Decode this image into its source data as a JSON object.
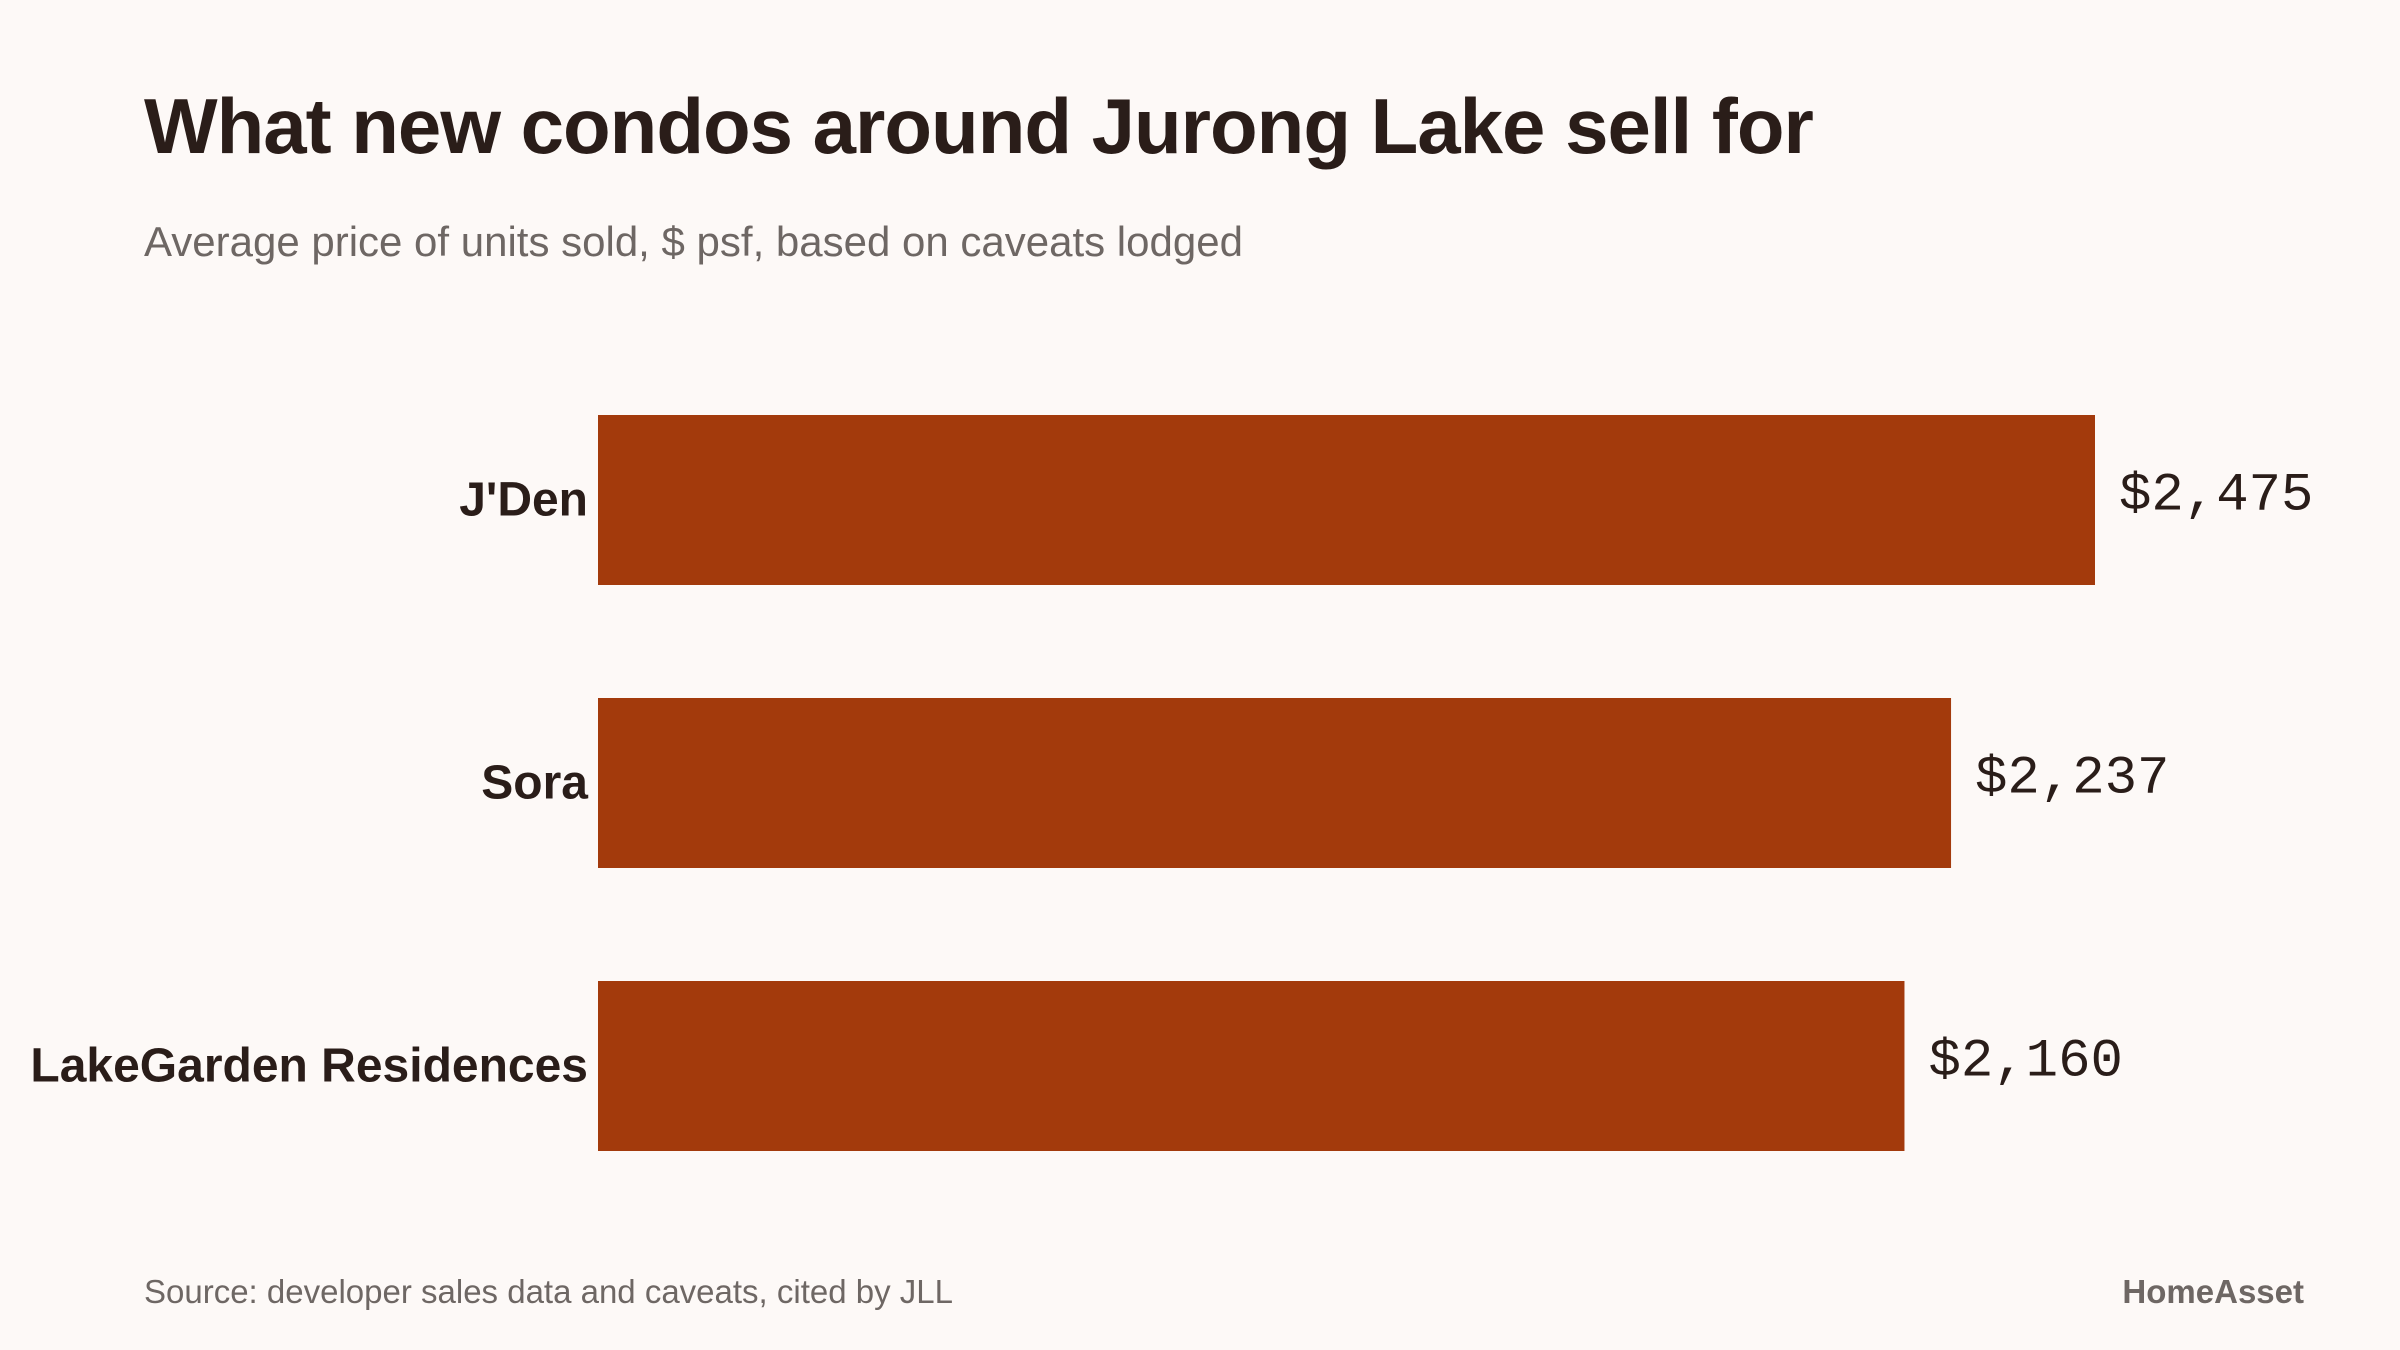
{
  "chart_data": {
    "type": "bar",
    "orientation": "horizontal",
    "title": "What new condos around Jurong Lake sell for",
    "subtitle": "Average price of units sold, $ psf, based on caveats lodged",
    "categories": [
      "J'Den",
      "Sora",
      "LakeGarden Residences"
    ],
    "values": [
      2475,
      2237,
      2160
    ],
    "value_labels": [
      "$2,475",
      "$2,237",
      "$2,160"
    ],
    "xlim": [
      0,
      2475
    ],
    "grid": false,
    "legend": "none",
    "colors": {
      "bar": "#a33a0c"
    }
  },
  "footer": {
    "source": "Source: developer sales data and caveats, cited by JLL",
    "brand": "HomeAsset"
  }
}
